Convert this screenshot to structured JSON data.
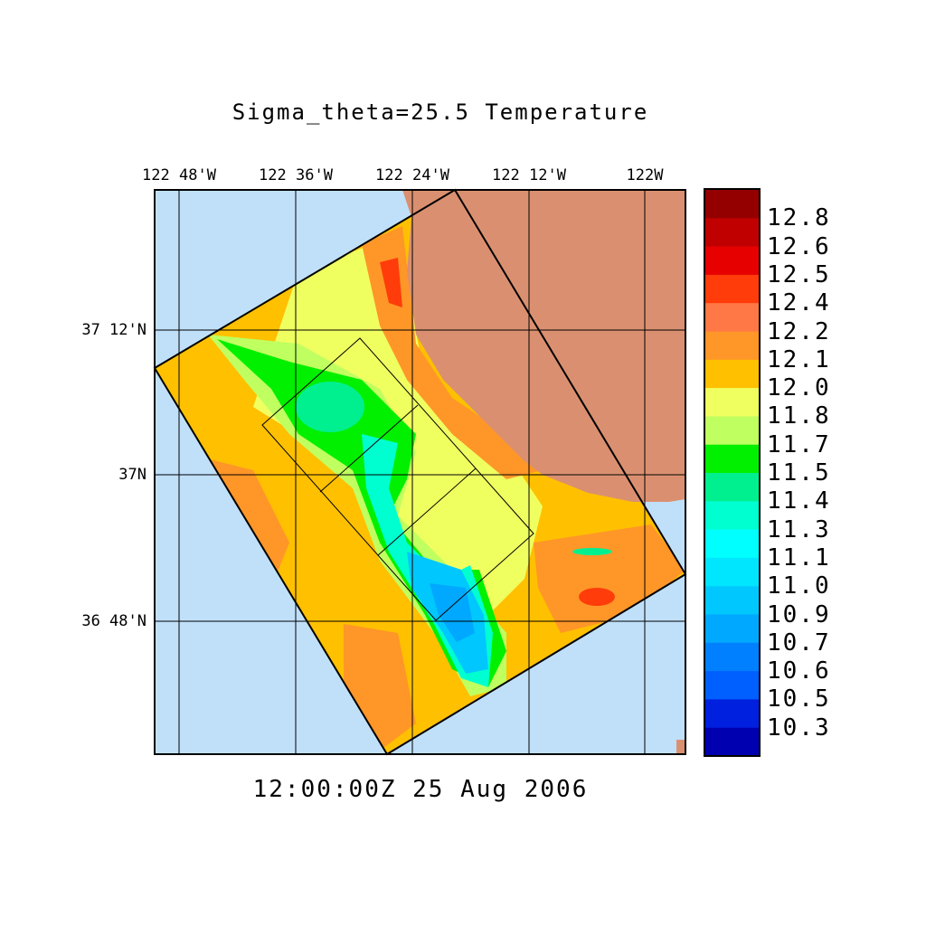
{
  "title": "Sigma_theta=25.5 Temperature",
  "timestamp": "12:00:00Z  25 Aug 2006",
  "longitude_labels": [
    "122 48'W",
    "122 36'W",
    "122 24'W",
    "122 12'W",
    "122W"
  ],
  "latitude_labels": [
    "37 12'N",
    "37N",
    "36 48'N"
  ],
  "colors": {
    "ocean": "#c0e0fa",
    "land": "#da9070"
  },
  "colorbar": {
    "labels": [
      "12.8",
      "12.6",
      "12.5",
      "12.4",
      "12.2",
      "12.1",
      "12.0",
      "11.8",
      "11.7",
      "11.5",
      "11.4",
      "11.3",
      "11.1",
      "11.0",
      "10.9",
      "10.7",
      "10.6",
      "10.5",
      "10.3"
    ],
    "colors": [
      "#940000",
      "#c00000",
      "#e60000",
      "#ff3c0a",
      "#ff7846",
      "#ff9628",
      "#ffc000",
      "#f0ff60",
      "#c0ff60",
      "#00f000",
      "#00f090",
      "#00ffd0",
      "#00ffff",
      "#00e6ff",
      "#00c8ff",
      "#00a8ff",
      "#0080ff",
      "#0060ff",
      "#0020e0",
      "#0000b0"
    ]
  }
}
